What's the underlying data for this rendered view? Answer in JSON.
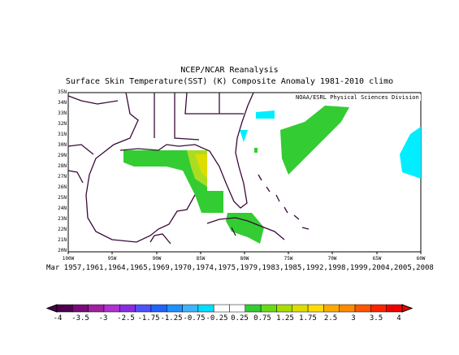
{
  "title_line1": "NCEP/NCAR Reanalysis",
  "title_line2": "Surface Skin Temperature(SST) (K) Composite Anomaly 1981-2010 climo",
  "credit": "NOAA/ESRL Physical Sciences Division",
  "dates": "Mar 1957,1961,1964,1965,1969,1970,1974,1975,1979,1983,1985,1992,1998,1999,2004,2005,2008",
  "map": {
    "region": "Gulf of Mexico / Florida / Bahamas / Cuba",
    "lon_range": [
      -100,
      -60
    ],
    "lat_range": [
      20,
      35
    ],
    "lat_ticks": [
      "35N",
      "34N",
      "33N",
      "32N",
      "31N",
      "30N",
      "29N",
      "28N",
      "27N",
      "26N",
      "25N",
      "24N",
      "23N",
      "22N",
      "21N",
      "20N"
    ],
    "lon_ticks": [
      "100W",
      "95W",
      "90W",
      "85W",
      "80W",
      "75W",
      "70W",
      "65W",
      "60W"
    ],
    "anomaly_patches": [
      {
        "region": "northern Gulf coast",
        "value": 0.5,
        "color": "#33cc33"
      },
      {
        "region": "Florida Big Bend",
        "value": 1.25,
        "color": "#aadd22"
      },
      {
        "region": "Straits / northern Cuba",
        "value": 0.5,
        "color": "#33cc33"
      },
      {
        "region": "western Atlantic near 72W",
        "value": 0.5,
        "color": "#33cc33"
      },
      {
        "region": "Atlantic near 79W 31N",
        "value": -0.5,
        "color": "#00eeff"
      },
      {
        "region": "Atlantic near 60W",
        "value": -0.5,
        "color": "#00eeff"
      }
    ]
  },
  "colorbar": {
    "labels": [
      "-4",
      "-3.5",
      "-3",
      "-2.5",
      "-1.75",
      "-1.25",
      "-0.75",
      "-0.25",
      "0.25",
      "0.75",
      "1.25",
      "1.75",
      "2.5",
      "3",
      "3.5",
      "4"
    ],
    "colors": [
      "#4d004d",
      "#7a0a7a",
      "#a020a0",
      "#b030d0",
      "#8a2be2",
      "#5050ff",
      "#1e64ff",
      "#1e90ff",
      "#3cb4ff",
      "#00ddff",
      "#ffffff",
      "#ffffff",
      "#33cc33",
      "#66dd11",
      "#aadd00",
      "#dddd00",
      "#ffdd00",
      "#ffaa00",
      "#ff8800",
      "#ff5500",
      "#ff2200",
      "#ee0000"
    ]
  }
}
